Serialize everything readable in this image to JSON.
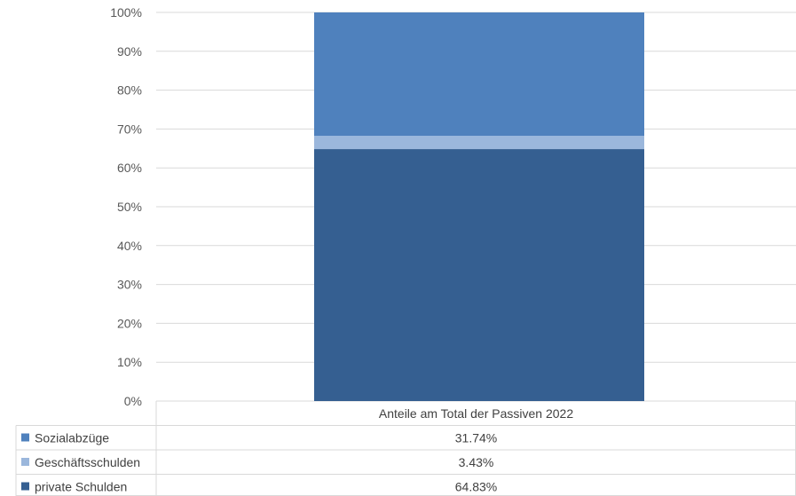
{
  "chart_data": {
    "type": "bar",
    "stacked": true,
    "normalized": true,
    "categories": [
      "Anteile am Total der Passiven 2022"
    ],
    "series": [
      {
        "name": "private Schulden",
        "values": [
          64.83
        ],
        "label": "64.83%",
        "color": "#355F91"
      },
      {
        "name": "Geschäftsschulden",
        "values": [
          3.43
        ],
        "label": "3.43%",
        "color": "#9BB7DC"
      },
      {
        "name": "Sozialabzüge",
        "values": [
          31.74
        ],
        "label": "31.74%",
        "color": "#4F81BD"
      }
    ],
    "ylim": [
      0,
      100
    ],
    "yticks": [
      "0%",
      "10%",
      "20%",
      "30%",
      "40%",
      "50%",
      "60%",
      "70%",
      "80%",
      "90%",
      "100%"
    ],
    "grid": true,
    "legend": "data-table",
    "table_rows": [
      {
        "name": "Sozialabzüge",
        "value": "31.74%",
        "color": "#4F81BD"
      },
      {
        "name": "Geschäftsschulden",
        "value": "3.43%",
        "color": "#9BB7DC"
      },
      {
        "name": "private Schulden",
        "value": "64.83%",
        "color": "#355F91"
      }
    ],
    "title": "",
    "xlabel": "",
    "ylabel": ""
  }
}
